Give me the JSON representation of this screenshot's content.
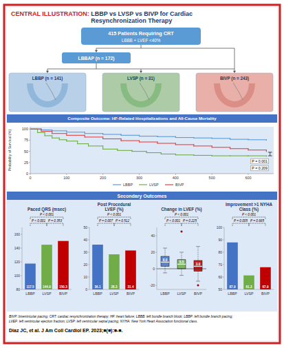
{
  "title": "CENTRAL ILLUSTRATION:",
  "subtitle": "LBBP vs LVSP vs BIVP for Cardiac\nResynchronization Therapy",
  "annotations": [
    "415 Patients Requiring CRT",
    "LBBB + LVEF <40%",
    "LBBAP (n = 172)",
    "LBBP (n = 141)",
    "LVSP (n = 31)",
    "BIVP (n = 243)",
    "Secondary Outcomes",
    "BIVP: biventricular pacing; CRT: cardiac resynchronization therapy; HF: heart failure; LBBB: left bundle branch block; LBBP: left bundle branch pacing;\nLVEF: left ventricular ejection fraction; LVSP: left ventricular septal pacing; NYHA: New York Heart Association functional class.",
    "Diaz JC, et al. J Am Coll Cardiol EP. 2023;■(■):■-■."
  ],
  "chart_data": [
    {
      "type": "step",
      "title": "Composite Outcome: HF-Related Hospitalizations and All-Cause Mortality",
      "ylabel": "Probability of Survival (%)",
      "series": [
        {
          "name": "LBBP",
          "color": "#5b9bd5",
          "x": [
            0,
            30,
            60,
            100,
            150,
            200,
            250,
            300,
            350,
            400,
            450,
            500,
            550,
            600,
            650
          ],
          "values": [
            100,
            98,
            96,
            93,
            90,
            88,
            86,
            84,
            83,
            81,
            80,
            79,
            77,
            76,
            75
          ]
        },
        {
          "name": "LVSP",
          "color": "#70ad47",
          "x": [
            0,
            20,
            40,
            60,
            80,
            100,
            130,
            160,
            200,
            240,
            280,
            320,
            360,
            400,
            450,
            500,
            550,
            600,
            650
          ],
          "values": [
            100,
            92,
            85,
            80,
            76,
            73,
            67,
            62,
            55,
            52,
            50,
            47,
            44,
            42,
            41,
            40,
            40,
            40,
            39
          ]
        },
        {
          "name": "BIVP",
          "color": "#e84040",
          "x": [
            0,
            30,
            60,
            100,
            150,
            200,
            250,
            300,
            350,
            400,
            450,
            500,
            550,
            600,
            650
          ],
          "values": [
            100,
            95,
            90,
            86,
            82,
            78,
            74,
            71,
            68,
            65,
            62,
            59,
            56,
            53,
            50
          ]
        }
      ],
      "xlim": [
        0,
        670
      ],
      "xticks": [
        0,
        100,
        200,
        300,
        400,
        500,
        600
      ],
      "ylim": [
        0,
        105
      ],
      "yticks": [
        0,
        25,
        50,
        75,
        100
      ],
      "annotations": [
        "P = 0.001",
        "P = 0.209"
      ],
      "error_bar": {
        "x": 660,
        "value": 44,
        "error": 4
      },
      "legend": "bottom",
      "grid": false
    },
    {
      "type": "bar",
      "title": "Paced QRS (msec)",
      "categories": [
        "LBBP",
        "LVSP",
        "BIVP"
      ],
      "values": [
        117.5,
        144.9,
        150.3
      ],
      "colors": [
        "#4472c4",
        "#70ad47",
        "#c00000"
      ],
      "ylim": [
        80,
        170
      ],
      "yticks": [
        80,
        100,
        120,
        140,
        160
      ],
      "data_labels": true,
      "grid": false,
      "annotations": [
        "P < 0.001",
        "P < 0.001",
        "P = 0.353"
      ]
    },
    {
      "type": "bar",
      "title": "Post Procedural\nLVEF (%)",
      "categories": [
        "LBBP",
        "LVSP",
        "BIVP"
      ],
      "values": [
        36.1,
        28.3,
        31.4
      ],
      "colors": [
        "#4472c4",
        "#70ad47",
        "#c00000"
      ],
      "ylim": [
        0,
        50
      ],
      "yticks": [
        0,
        10,
        20,
        30,
        40,
        50
      ],
      "data_labels": true,
      "grid": false,
      "annotations": [
        "P < 0.001",
        "P = 0.007",
        "P = 0.512"
      ]
    },
    {
      "type": "box",
      "title": "Change in LVEF (%)",
      "categories": [
        "LBBP",
        "LVSP",
        "BIVP"
      ],
      "boxes": [
        {
          "median": 8.0,
          "q1": 3,
          "q3": 15,
          "whislo": -5,
          "whishi": 25,
          "fliers": []
        },
        {
          "median": 5.5,
          "q1": 0,
          "q3": 11,
          "whislo": -8,
          "whishi": 20,
          "fliers": [
            45
          ]
        },
        {
          "median": 3.0,
          "q1": -3,
          "q3": 10,
          "whislo": -15,
          "whishi": 27,
          "fliers": [
            -20
          ]
        }
      ],
      "value_labels": [
        "8.0",
        "5.5",
        "3.0"
      ],
      "colors": [
        "#4472c4",
        "#70ad47",
        "#c00000"
      ],
      "ylim": [
        -25,
        50
      ],
      "yticks": [
        -20,
        0,
        20,
        40
      ],
      "data_labels": true,
      "grid": false,
      "annotations": [
        "P < 0.001",
        "P < 0.001",
        "P = 0.225"
      ]
    },
    {
      "type": "bar",
      "title": "Improvement >1 NYHA\nClass (%)",
      "categories": [
        "LBBP",
        "LVSP",
        "BIVP"
      ],
      "values": [
        87.9,
        61.3,
        67.9
      ],
      "colors": [
        "#4472c4",
        "#70ad47",
        "#c00000"
      ],
      "ylim": [
        50,
        100
      ],
      "yticks": [
        50,
        60,
        70,
        80,
        90,
        100
      ],
      "data_labels": true,
      "grid": false,
      "annotations": [
        "P < 0.001",
        "P = 0.005",
        "P = 0.665"
      ]
    }
  ]
}
